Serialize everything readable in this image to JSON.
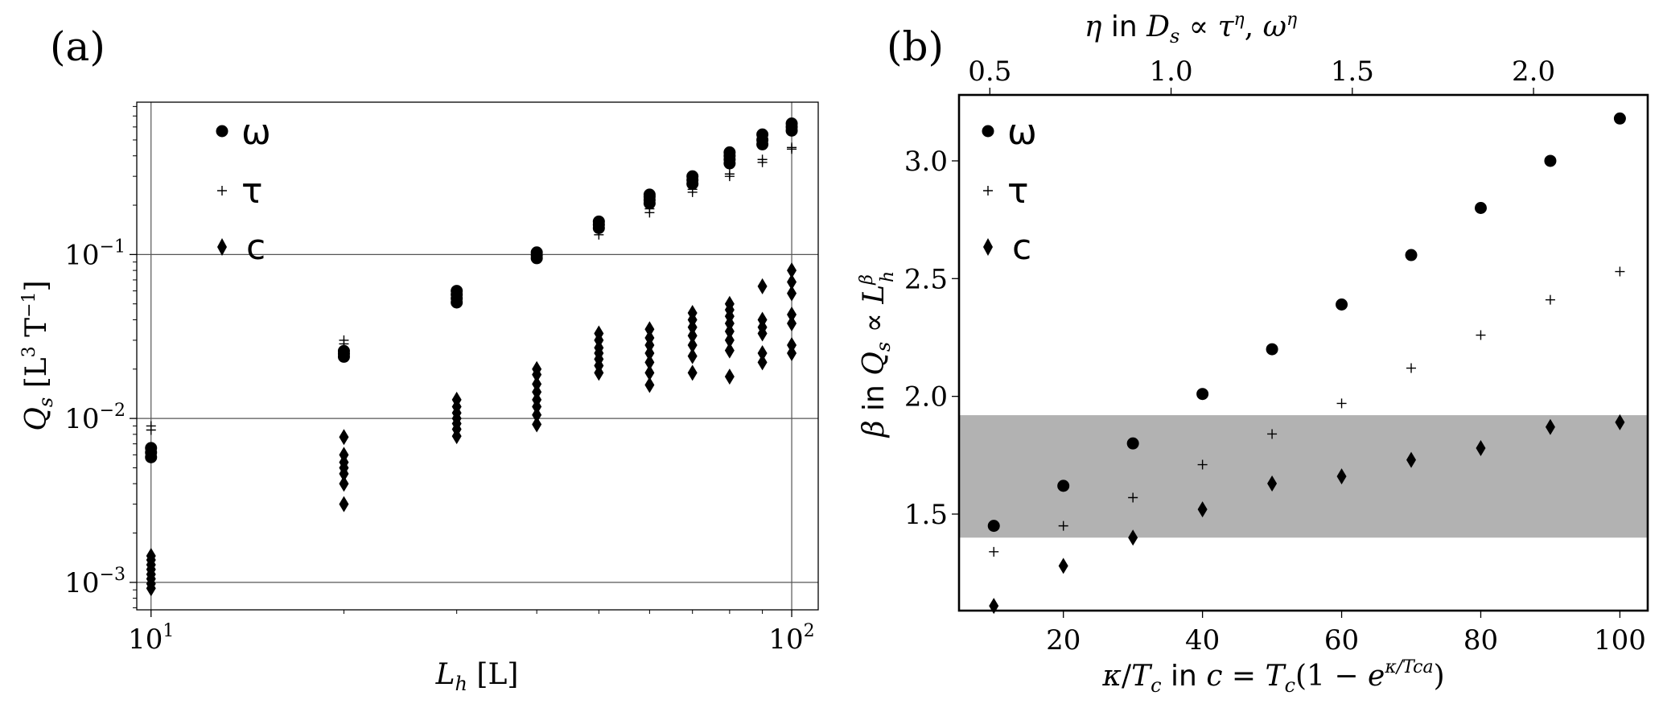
{
  "figure": {
    "panel_a": {
      "letter": "(a)",
      "x_title": "L_h [L]",
      "y_title": "Q_s [L³ T⁻¹]",
      "x_tick_base": "10",
      "x_ticks": [
        {
          "value": 10,
          "exp": "1"
        },
        {
          "value": 100,
          "exp": "2"
        }
      ],
      "y_tick_base": "10",
      "y_ticks": [
        {
          "value": 0.001,
          "exp": "−3"
        },
        {
          "value": 0.01,
          "exp": "−2"
        },
        {
          "value": 0.1,
          "exp": "−1"
        }
      ],
      "legend": [
        {
          "series": "omega",
          "label": "ω"
        },
        {
          "series": "tau",
          "label": "τ"
        },
        {
          "series": "c",
          "label": "c"
        }
      ]
    },
    "panel_b": {
      "letter": "(b)",
      "x_title": "κ/T_c in c = T_c(1 − e^(κ/T_c a))",
      "y_title": "β in Q_s ∝ L_h^β",
      "top_title": "η in D_s ∝ τ^η, ω^η",
      "x_ticks": [
        "20",
        "40",
        "60",
        "80",
        "100"
      ],
      "y_ticks": [
        "1.5",
        "2.0",
        "2.5",
        "3.0"
      ],
      "top_ticks": [
        "0.5",
        "1.0",
        "1.5",
        "2.0"
      ],
      "legend": [
        {
          "series": "omega",
          "label": "ω"
        },
        {
          "series": "tau",
          "label": "τ"
        },
        {
          "series": "c",
          "label": "c"
        }
      ]
    }
  },
  "chart_data": [
    {
      "type": "scatter",
      "panel": "(a)",
      "xlabel": "L_h [L]",
      "ylabel": "Q_s [L³ T⁻¹]",
      "xscale": "log",
      "yscale": "log",
      "xlim": [
        9.5,
        110
      ],
      "ylim": [
        0.00068,
        0.85
      ],
      "grid": "major gridlines",
      "legend_position": "top-left",
      "series": [
        {
          "name": "ω",
          "marker": "circle",
          "points": [
            [
              10,
              0.0058
            ],
            [
              10,
              0.0062
            ],
            [
              10,
              0.0066
            ],
            [
              20,
              0.0238
            ],
            [
              20,
              0.0248
            ],
            [
              20,
              0.0258
            ],
            [
              30,
              0.051
            ],
            [
              30,
              0.054
            ],
            [
              30,
              0.057
            ],
            [
              30,
              0.06
            ],
            [
              40,
              0.095
            ],
            [
              40,
              0.099
            ],
            [
              40,
              0.103
            ],
            [
              50,
              0.145
            ],
            [
              50,
              0.152
            ],
            [
              50,
              0.159
            ],
            [
              60,
              0.205
            ],
            [
              60,
              0.215
            ],
            [
              60,
              0.225
            ],
            [
              60,
              0.232
            ],
            [
              70,
              0.27
            ],
            [
              70,
              0.285
            ],
            [
              70,
              0.3
            ],
            [
              80,
              0.36
            ],
            [
              80,
              0.38
            ],
            [
              80,
              0.4
            ],
            [
              80,
              0.42
            ],
            [
              90,
              0.47
            ],
            [
              90,
              0.5
            ],
            [
              90,
              0.54
            ],
            [
              100,
              0.57
            ],
            [
              100,
              0.6
            ],
            [
              100,
              0.63
            ]
          ]
        },
        {
          "name": "τ",
          "marker": "plus",
          "points": [
            [
              10,
              0.0085
            ],
            [
              10,
              0.009
            ],
            [
              20,
              0.0285
            ],
            [
              20,
              0.03
            ],
            [
              40,
              0.095
            ],
            [
              50,
              0.132
            ],
            [
              50,
              0.14
            ],
            [
              60,
              0.18
            ],
            [
              60,
              0.19
            ],
            [
              70,
              0.24
            ],
            [
              70,
              0.25
            ],
            [
              80,
              0.3
            ],
            [
              80,
              0.31
            ],
            [
              90,
              0.365
            ],
            [
              90,
              0.38
            ],
            [
              100,
              0.44
            ],
            [
              100,
              0.45
            ]
          ]
        },
        {
          "name": "c",
          "marker": "diamond",
          "points": [
            [
              10,
              0.00092
            ],
            [
              10,
              0.00098
            ],
            [
              10,
              0.00105
            ],
            [
              10,
              0.00112
            ],
            [
              10,
              0.0012
            ],
            [
              10,
              0.00128
            ],
            [
              10,
              0.00137
            ],
            [
              10,
              0.00145
            ],
            [
              20,
              0.003
            ],
            [
              20,
              0.004
            ],
            [
              20,
              0.0046
            ],
            [
              20,
              0.005
            ],
            [
              20,
              0.0054
            ],
            [
              20,
              0.006
            ],
            [
              20,
              0.0077
            ],
            [
              30,
              0.0078
            ],
            [
              30,
              0.0086
            ],
            [
              30,
              0.0093
            ],
            [
              30,
              0.01
            ],
            [
              30,
              0.0108
            ],
            [
              30,
              0.0118
            ],
            [
              30,
              0.013
            ],
            [
              40,
              0.0092
            ],
            [
              40,
              0.0105
            ],
            [
              40,
              0.0118
            ],
            [
              40,
              0.013
            ],
            [
              40,
              0.0145
            ],
            [
              40,
              0.0162
            ],
            [
              40,
              0.0185
            ],
            [
              40,
              0.02
            ],
            [
              50,
              0.019
            ],
            [
              50,
              0.021
            ],
            [
              50,
              0.023
            ],
            [
              50,
              0.025
            ],
            [
              50,
              0.027
            ],
            [
              50,
              0.03
            ],
            [
              50,
              0.033
            ],
            [
              60,
              0.016
            ],
            [
              60,
              0.019
            ],
            [
              60,
              0.022
            ],
            [
              60,
              0.025
            ],
            [
              60,
              0.028
            ],
            [
              60,
              0.031
            ],
            [
              60,
              0.035
            ],
            [
              70,
              0.019
            ],
            [
              70,
              0.024
            ],
            [
              70,
              0.028
            ],
            [
              70,
              0.032
            ],
            [
              70,
              0.036
            ],
            [
              70,
              0.04
            ],
            [
              70,
              0.044
            ],
            [
              80,
              0.018
            ],
            [
              80,
              0.026
            ],
            [
              80,
              0.03
            ],
            [
              80,
              0.034
            ],
            [
              80,
              0.038
            ],
            [
              80,
              0.042
            ],
            [
              80,
              0.046
            ],
            [
              80,
              0.05
            ],
            [
              90,
              0.022
            ],
            [
              90,
              0.025
            ],
            [
              90,
              0.033
            ],
            [
              90,
              0.036
            ],
            [
              90,
              0.04
            ],
            [
              90,
              0.064
            ],
            [
              100,
              0.025
            ],
            [
              100,
              0.028
            ],
            [
              100,
              0.038
            ],
            [
              100,
              0.043
            ],
            [
              100,
              0.058
            ],
            [
              100,
              0.068
            ],
            [
              100,
              0.08
            ]
          ]
        }
      ]
    },
    {
      "type": "scatter",
      "panel": "(b)",
      "xlabel": "κ/T_c in c = T_c(1 − e^(κ/T_c a))",
      "ylabel": "β in Q_s ∝ L_h^β",
      "top_xlabel": "η in D_s ∝ τ^η, ω^η",
      "xlim": [
        5,
        104
      ],
      "ylim": [
        1.09,
        3.28
      ],
      "top_xlim": [
        0.415,
        2.315
      ],
      "top_ticks": [
        0.5,
        1.0,
        1.5,
        2.0
      ],
      "shaded_band_y": [
        1.4,
        1.92
      ],
      "grid": "off",
      "legend_position": "top-left",
      "series": [
        {
          "name": "ω",
          "marker": "circle",
          "x": [
            10,
            20,
            30,
            40,
            50,
            60,
            70,
            80,
            90,
            100
          ],
          "y": [
            1.45,
            1.62,
            1.8,
            2.01,
            2.2,
            2.39,
            2.6,
            2.8,
            3.0,
            3.18
          ]
        },
        {
          "name": "τ",
          "marker": "plus",
          "x": [
            10,
            20,
            30,
            40,
            50,
            60,
            70,
            80,
            90,
            100
          ],
          "y": [
            1.34,
            1.45,
            1.57,
            1.71,
            1.84,
            1.97,
            2.12,
            2.26,
            2.41,
            2.53
          ]
        },
        {
          "name": "c",
          "marker": "diamond",
          "x": [
            10,
            20,
            30,
            40,
            50,
            60,
            70,
            80,
            90,
            100
          ],
          "y": [
            1.11,
            1.28,
            1.4,
            1.52,
            1.63,
            1.66,
            1.73,
            1.78,
            1.87,
            1.89
          ]
        }
      ]
    }
  ]
}
